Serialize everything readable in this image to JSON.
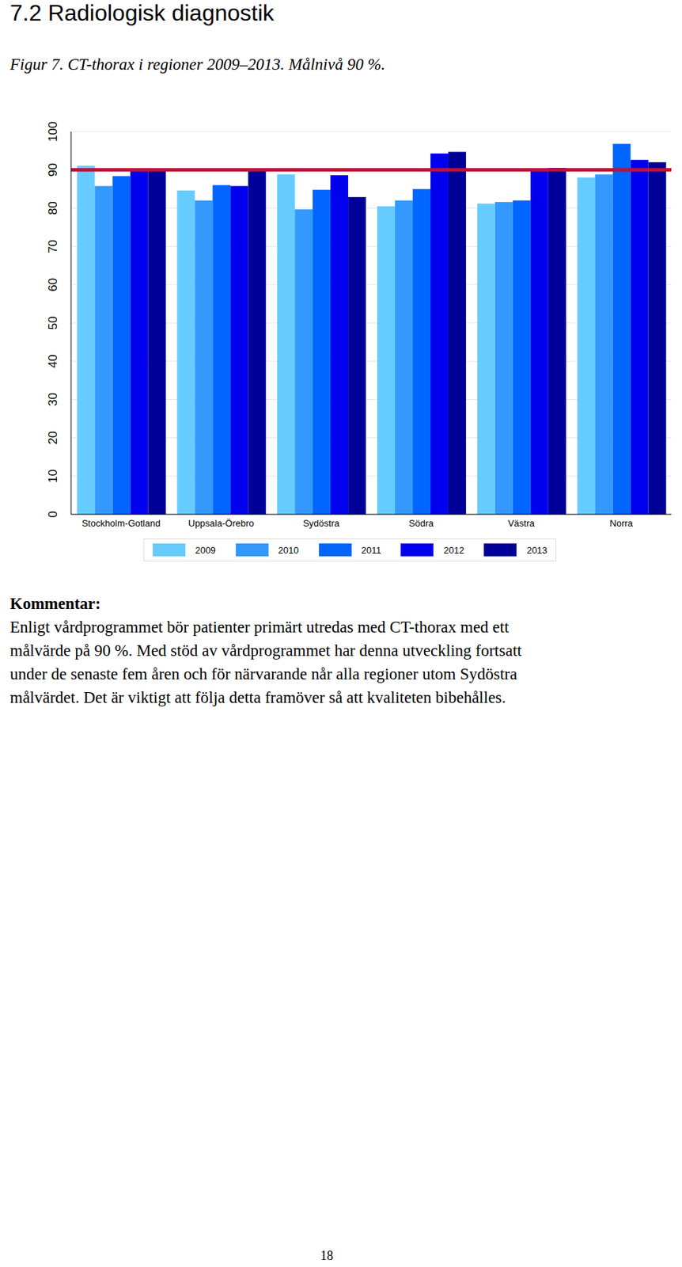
{
  "heading": "7.2 Radiologisk diagnostik",
  "caption": "Figur 7. CT-thorax i regioner 2009–2013. Målnivå 90 %.",
  "chart_data": {
    "type": "bar",
    "categories": [
      "Stockholm-Gotland",
      "Uppsala-Örebro",
      "Sydöstra",
      "Södra",
      "Västra",
      "Norra"
    ],
    "series": [
      {
        "name": "2009",
        "color": "#66ccff",
        "values": [
          91.1,
          84.6,
          88.8,
          80.5,
          81.2,
          88.0
        ]
      },
      {
        "name": "2010",
        "color": "#3399ff",
        "values": [
          85.8,
          82.0,
          79.7,
          82.0,
          81.6,
          88.8
        ]
      },
      {
        "name": "2011",
        "color": "#0066ff",
        "values": [
          88.4,
          86.0,
          84.8,
          85.0,
          82.0,
          96.8
        ]
      },
      {
        "name": "2012",
        "color": "#0000ee",
        "values": [
          90.0,
          85.8,
          88.6,
          94.3,
          89.9,
          92.6
        ]
      },
      {
        "name": "2013",
        "color": "#000099",
        "values": [
          90.0,
          90.0,
          82.9,
          94.7,
          90.5,
          92.0
        ]
      }
    ],
    "ylim": [
      0,
      100
    ],
    "yticks": [
      0,
      10,
      20,
      30,
      40,
      50,
      60,
      70,
      80,
      90,
      100
    ],
    "grid": true,
    "legend": "bottom",
    "target_line": {
      "value": 90,
      "color": "#c0103a"
    }
  },
  "comment": {
    "title": "Kommentar:",
    "lines": [
      "Enligt vårdprogrammet bör patienter primärt utredas med CT-thorax med ett",
      "målvärde på 90 %. Med stöd av vårdprogrammet har denna utveckling fortsatt",
      "under de senaste fem åren och för närvarande når alla regioner utom Sydöstra",
      "målvärdet. Det är viktigt att följa detta framöver så att kvaliteten bibehålles."
    ]
  },
  "page_number": 18
}
